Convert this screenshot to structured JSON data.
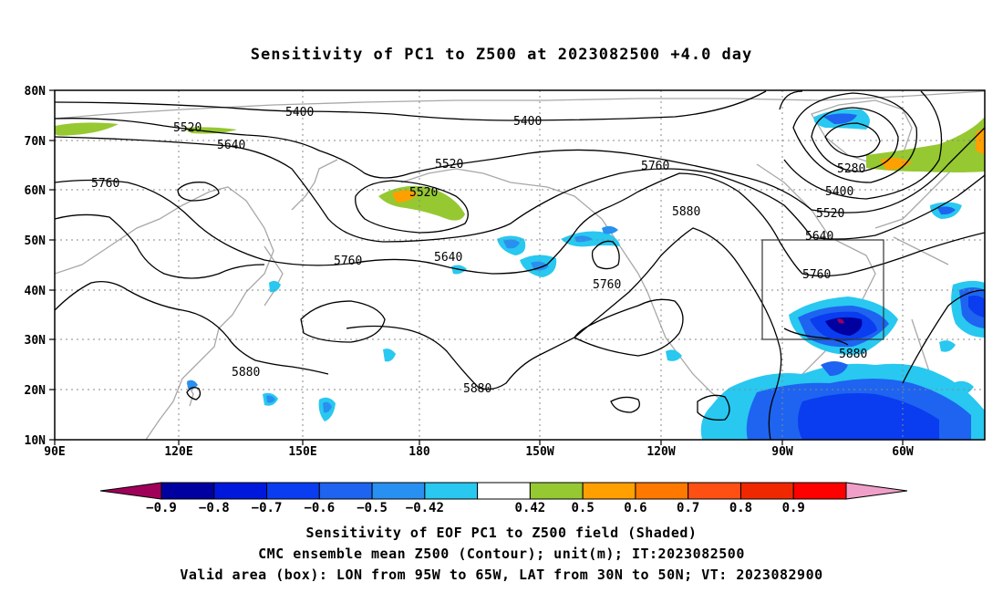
{
  "title": "Sensitivity of PC1 to Z500 at 2023082500 +4.0 day",
  "lat_labels": [
    "80N",
    "70N",
    "60N",
    "50N",
    "40N",
    "30N",
    "20N",
    "10N"
  ],
  "lon_labels": [
    "90E",
    "120E",
    "150E",
    "180",
    "150W",
    "120W",
    "90W",
    "60W"
  ],
  "contour_labels": [
    {
      "text": "5400"
    },
    {
      "text": "5400"
    },
    {
      "text": "5520"
    },
    {
      "text": "5640"
    },
    {
      "text": "5520"
    },
    {
      "text": "5520"
    },
    {
      "text": "5760"
    },
    {
      "text": "5760"
    },
    {
      "text": "5880"
    },
    {
      "text": "5280"
    },
    {
      "text": "5400"
    },
    {
      "text": "5520"
    },
    {
      "text": "5640"
    },
    {
      "text": "5760"
    },
    {
      "text": "5760"
    },
    {
      "text": "5640"
    },
    {
      "text": "5760"
    },
    {
      "text": "5880"
    },
    {
      "text": "5880"
    },
    {
      "text": "5880"
    }
  ],
  "colorbar": {
    "colors": [
      "#a0005a",
      "#0000a0",
      "#0018dc",
      "#0a3cf0",
      "#1e64f0",
      "#2890f0",
      "#28c8f0",
      "#ffffff",
      "#96c832",
      "#ffa000",
      "#ff7800",
      "#ff5014",
      "#f02800",
      "#ff0000",
      "#f0a0c8"
    ],
    "labels": [
      "−0.9",
      "−0.8",
      "−0.7",
      "−0.6",
      "−0.5",
      "−0.42",
      "0.42",
      "0.5",
      "0.6",
      "0.7",
      "0.8",
      "0.9"
    ]
  },
  "captions": {
    "line1": "Sensitivity of EOF PC1 to Z500 field (Shaded)",
    "line2": "CMC ensemble mean Z500 (Contour); unit(m); IT:2023082500",
    "line3": "Valid area (box): LON from 95W to 65W, LAT from 30N to 50N; VT: 2023082900"
  },
  "valid_box": {
    "lon_min": -95,
    "lon_max": -65,
    "lat_min": 30,
    "lat_max": 50
  }
}
